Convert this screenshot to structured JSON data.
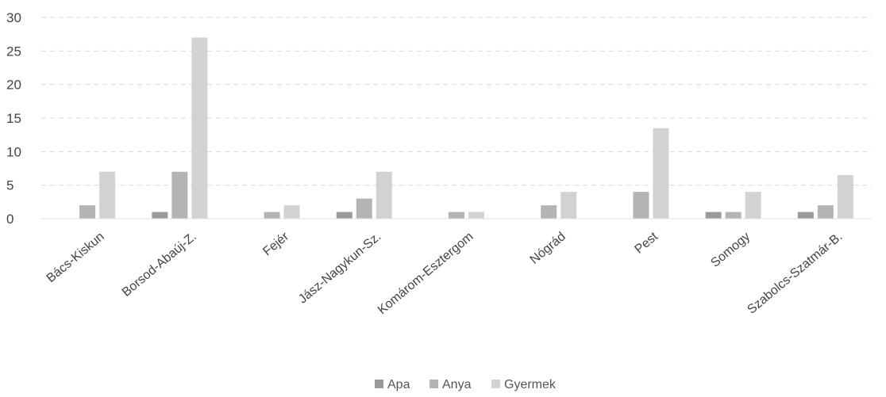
{
  "chart_data": {
    "type": "bar",
    "title": "",
    "xlabel": "",
    "ylabel": "",
    "ylim": [
      0,
      30
    ],
    "yticks": [
      0,
      5,
      10,
      15,
      20,
      25,
      30
    ],
    "grid": true,
    "legend_position": "bottom",
    "categories": [
      "Bács-Kiskun",
      "Borsod-Abaúj-Z.",
      "Fejér",
      "Jász-Nagykun-Sz.",
      "Komárom-Esztergom",
      "Nógrád",
      "Pest",
      "Somogy",
      "Szabolcs-Szatmár-B."
    ],
    "series": [
      {
        "name": "Apa",
        "color": "#9a9a9a",
        "values": [
          0,
          1,
          0,
          1,
          0,
          0,
          0,
          1,
          1
        ]
      },
      {
        "name": "Anya",
        "color": "#b4b4b4",
        "values": [
          2,
          7,
          1,
          3,
          1,
          2,
          4,
          1,
          2
        ]
      },
      {
        "name": "Gyermek",
        "color": "#d2d2d2",
        "values": [
          7,
          27,
          2,
          7,
          1,
          4,
          13.5,
          4,
          6.5
        ]
      }
    ]
  }
}
